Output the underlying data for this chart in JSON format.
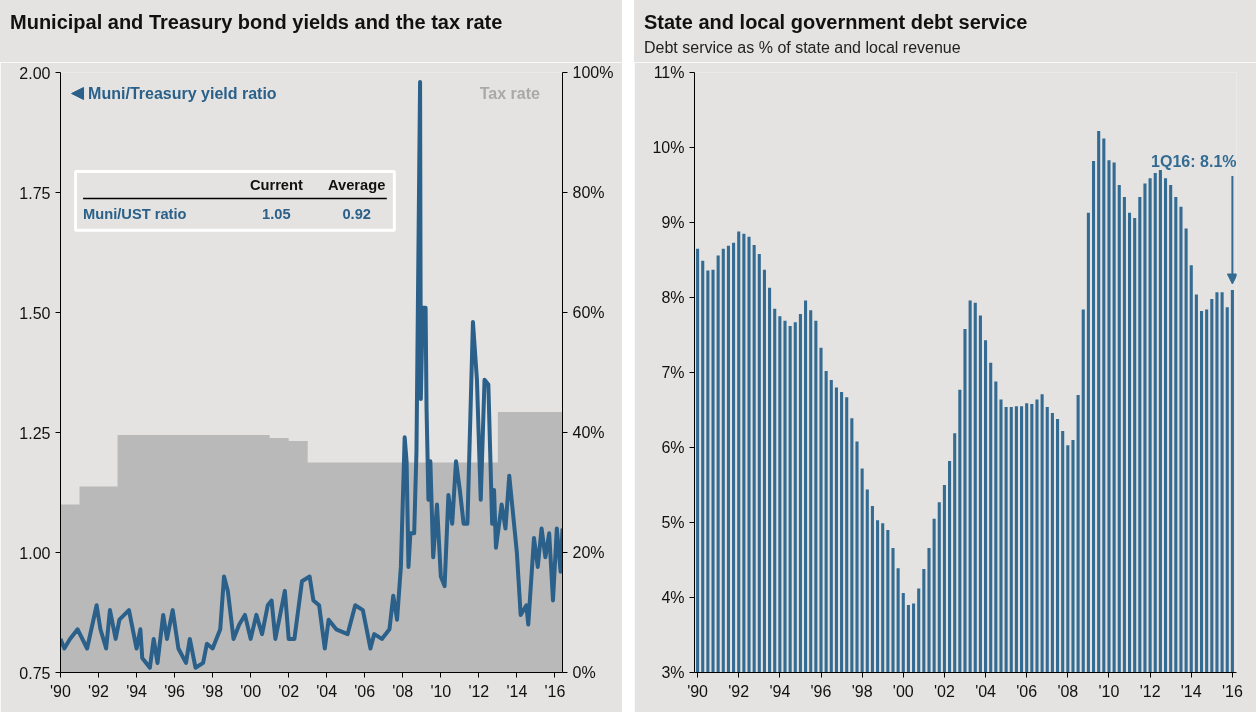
{
  "chart_data": [
    {
      "type": "line",
      "title": "Municipal and Treasury bond yields and the tax rate",
      "xlim": [
        1990,
        2016.4
      ],
      "xticks": [
        {
          "value": 1990,
          "label": "'90"
        },
        {
          "value": 1992,
          "label": "'92"
        },
        {
          "value": 1994,
          "label": "'94"
        },
        {
          "value": 1996,
          "label": "'96"
        },
        {
          "value": 1998,
          "label": "'98"
        },
        {
          "value": 2000,
          "label": "'00"
        },
        {
          "value": 2002,
          "label": "'02"
        },
        {
          "value": 2004,
          "label": "'04"
        },
        {
          "value": 2006,
          "label": "'06"
        },
        {
          "value": 2008,
          "label": "'08"
        },
        {
          "value": 2010,
          "label": "'10"
        },
        {
          "value": 2012,
          "label": "'12"
        },
        {
          "value": 2014,
          "label": "'14"
        },
        {
          "value": 2016,
          "label": "'16"
        }
      ],
      "ylim": [
        0.75,
        2.0
      ],
      "yticks": [
        {
          "value": 0.75,
          "label": "0.75"
        },
        {
          "value": 1.0,
          "label": "1.00"
        },
        {
          "value": 1.25,
          "label": "1.25"
        },
        {
          "value": 1.5,
          "label": "1.50"
        },
        {
          "value": 1.75,
          "label": "1.75"
        },
        {
          "value": 2.0,
          "label": "2.00"
        }
      ],
      "y2lim": [
        0,
        100
      ],
      "y2ticks": [
        {
          "value": 0,
          "label": "0%"
        },
        {
          "value": 20,
          "label": "20%"
        },
        {
          "value": 40,
          "label": "40%"
        },
        {
          "value": 60,
          "label": "60%"
        },
        {
          "value": 80,
          "label": "80%"
        },
        {
          "value": 100,
          "label": "100%"
        }
      ],
      "legend": "top",
      "series": [
        {
          "name": "Tax rate",
          "type": "area",
          "axis": "y2",
          "color": "#b9b9b9",
          "x": [
            1990,
            1991,
            1991,
            1993,
            1993,
            2001,
            2001,
            2002,
            2002,
            2003,
            2003,
            2013,
            2013,
            2016.4
          ],
          "values": [
            28,
            28,
            31,
            31,
            39.6,
            39.6,
            39.1,
            39.1,
            38.6,
            38.6,
            35,
            35,
            43.4,
            43.4
          ]
        },
        {
          "name": "Muni/Treasury yield ratio",
          "type": "line",
          "color": "#2a6089",
          "x": [
            1990.0,
            1990.2,
            1990.5,
            1990.9,
            1991.4,
            1991.9,
            1992.1,
            1992.4,
            1992.6,
            1992.9,
            1993.1,
            1993.6,
            1994.0,
            1994.2,
            1994.3,
            1994.7,
            1994.9,
            1995.1,
            1995.4,
            1995.6,
            1995.9,
            1996.2,
            1996.6,
            1996.8,
            1997.1,
            1997.5,
            1997.7,
            1998.0,
            1998.4,
            1998.6,
            1998.8,
            1999.1,
            1999.4,
            1999.7,
            2000.0,
            2000.3,
            2000.6,
            2000.9,
            2001.1,
            2001.3,
            2001.8,
            2002.0,
            2002.3,
            2002.7,
            2003.1,
            2003.3,
            2003.6,
            2003.9,
            2004.1,
            2004.5,
            2005.1,
            2005.5,
            2005.9,
            2006.3,
            2006.5,
            2006.9,
            2007.3,
            2007.5,
            2007.7,
            2007.9,
            2008.1,
            2008.2,
            2008.3,
            2008.4,
            2008.6,
            2008.72,
            2008.91,
            2008.95,
            2009.05,
            2009.2,
            2009.25,
            2009.35,
            2009.45,
            2009.6,
            2009.8,
            2010.0,
            2010.2,
            2010.4,
            2010.6,
            2010.8,
            2011.0,
            2011.2,
            2011.4,
            2011.69,
            2011.9,
            2012.1,
            2012.3,
            2012.5,
            2012.7,
            2012.8,
            2012.9,
            2013.2,
            2013.4,
            2013.6,
            2013.8,
            2014.0,
            2014.2,
            2014.5,
            2014.6,
            2014.9,
            2015.1,
            2015.3,
            2015.5,
            2015.7,
            2015.9,
            2016.1,
            2016.3,
            2016.4
          ],
          "values": [
            0.82,
            0.8,
            0.82,
            0.84,
            0.8,
            0.89,
            0.84,
            0.8,
            0.88,
            0.82,
            0.86,
            0.88,
            0.8,
            0.84,
            0.78,
            0.76,
            0.82,
            0.77,
            0.87,
            0.82,
            0.88,
            0.8,
            0.77,
            0.82,
            0.76,
            0.77,
            0.81,
            0.8,
            0.84,
            0.95,
            0.92,
            0.82,
            0.85,
            0.87,
            0.82,
            0.87,
            0.83,
            0.89,
            0.9,
            0.82,
            0.92,
            0.82,
            0.82,
            0.94,
            0.95,
            0.9,
            0.89,
            0.8,
            0.86,
            0.84,
            0.83,
            0.89,
            0.88,
            0.8,
            0.83,
            0.82,
            0.84,
            0.91,
            0.86,
            0.97,
            1.24,
            1.19,
            0.97,
            1.04,
            1.04,
            1.21,
            1.98,
            1.32,
            1.51,
            1.51,
            1.3,
            1.11,
            1.19,
            0.99,
            1.1,
            0.95,
            0.93,
            1.12,
            1.06,
            1.19,
            1.13,
            1.06,
            1.06,
            1.48,
            1.36,
            1.11,
            1.36,
            1.35,
            1.06,
            1.13,
            1.01,
            1.1,
            1.05,
            1.16,
            1.08,
            1.0,
            0.87,
            0.89,
            0.85,
            1.03,
            0.97,
            1.05,
            0.99,
            1.04,
            0.9,
            1.05,
            0.96,
            1.05
          ]
        }
      ],
      "annotations": [
        "Current",
        "Average",
        "Muni/UST ratio",
        "1.05",
        "0.92"
      ]
    },
    {
      "type": "bar",
      "title": "State and local government debt service",
      "subtitle": "Debt service as % of state and local revenue",
      "xlim": [
        1989.85,
        2016.2
      ],
      "xticks": [
        {
          "value": 1990,
          "label": "'90"
        },
        {
          "value": 1992,
          "label": "'92"
        },
        {
          "value": 1994,
          "label": "'94"
        },
        {
          "value": 1996,
          "label": "'96"
        },
        {
          "value": 1998,
          "label": "'98"
        },
        {
          "value": 2000,
          "label": "'00"
        },
        {
          "value": 2002,
          "label": "'02"
        },
        {
          "value": 2004,
          "label": "'04"
        },
        {
          "value": 2006,
          "label": "'06"
        },
        {
          "value": 2008,
          "label": "'08"
        },
        {
          "value": 2010,
          "label": "'10"
        },
        {
          "value": 2012,
          "label": "'12"
        },
        {
          "value": 2014,
          "label": "'14"
        },
        {
          "value": 2016,
          "label": "'16"
        }
      ],
      "ylim": [
        3,
        11
      ],
      "yticks": [
        {
          "value": 3,
          "label": "3%"
        },
        {
          "value": 4,
          "label": "4%"
        },
        {
          "value": 5,
          "label": "5%"
        },
        {
          "value": 6,
          "label": "6%"
        },
        {
          "value": 7,
          "label": "7%"
        },
        {
          "value": 8,
          "label": "8%"
        },
        {
          "value": 9,
          "label": "9%"
        },
        {
          "value": 10,
          "label": "10%"
        },
        {
          "value": 11,
          "label": "11%"
        }
      ],
      "color": "#336b93",
      "x": [
        1990,
        1990.25,
        1990.5,
        1990.75,
        1991,
        1991.25,
        1991.5,
        1991.75,
        1992,
        1992.25,
        1992.5,
        1992.75,
        1993,
        1993.25,
        1993.5,
        1993.75,
        1994,
        1994.25,
        1994.5,
        1994.75,
        1995,
        1995.25,
        1995.5,
        1995.75,
        1996,
        1996.25,
        1996.5,
        1996.75,
        1997,
        1997.25,
        1997.5,
        1997.75,
        1998,
        1998.25,
        1998.5,
        1998.75,
        1999,
        1999.25,
        1999.5,
        1999.75,
        2000,
        2000.25,
        2000.5,
        2000.75,
        2001,
        2001.25,
        2001.5,
        2001.75,
        2002,
        2002.25,
        2002.5,
        2002.75,
        2003,
        2003.25,
        2003.5,
        2003.75,
        2004,
        2004.25,
        2004.5,
        2004.75,
        2005,
        2005.25,
        2005.5,
        2005.75,
        2006,
        2006.25,
        2006.5,
        2006.75,
        2007,
        2007.25,
        2007.5,
        2007.75,
        2008,
        2008.25,
        2008.5,
        2008.75,
        2009,
        2009.25,
        2009.5,
        2009.75,
        2010,
        2010.25,
        2010.5,
        2010.75,
        2011,
        2011.25,
        2011.5,
        2011.75,
        2012,
        2012.25,
        2012.5,
        2012.75,
        2013,
        2013.25,
        2013.5,
        2013.75,
        2014,
        2014.25,
        2014.5,
        2014.75,
        2015,
        2015.25,
        2015.5,
        2015.75,
        2016
      ],
      "values": [
        8.65,
        8.49,
        8.36,
        8.37,
        8.56,
        8.65,
        8.69,
        8.73,
        8.88,
        8.85,
        8.81,
        8.7,
        8.58,
        8.37,
        8.13,
        7.85,
        7.75,
        7.69,
        7.62,
        7.67,
        7.78,
        7.96,
        7.83,
        7.69,
        7.33,
        7.02,
        6.9,
        6.8,
        6.74,
        6.67,
        6.39,
        6.08,
        5.72,
        5.44,
        5.22,
        5.03,
        4.99,
        4.9,
        4.66,
        4.39,
        4.06,
        3.9,
        3.92,
        4.12,
        4.38,
        4.66,
        5.05,
        5.27,
        5.5,
        5.82,
        6.19,
        6.77,
        7.58,
        7.96,
        7.93,
        7.76,
        7.43,
        7.13,
        6.88,
        6.64,
        6.54,
        6.54,
        6.55,
        6.55,
        6.59,
        6.58,
        6.64,
        6.71,
        6.54,
        6.46,
        6.38,
        6.22,
        6.03,
        6.1,
        6.7,
        7.84,
        9.13,
        9.82,
        10.22,
        10.12,
        9.83,
        9.8,
        9.5,
        9.34,
        9.13,
        9.06,
        9.34,
        9.52,
        9.59,
        9.66,
        9.7,
        9.59,
        9.5,
        9.34,
        9.21,
        8.92,
        8.43,
        8.04,
        7.82,
        7.84,
        7.98,
        8.07,
        8.07,
        7.87,
        8.1
      ],
      "annotations": [
        {
          "text": "1Q16: 8.1%",
          "x": 2016,
          "y": 8.1
        }
      ]
    }
  ]
}
